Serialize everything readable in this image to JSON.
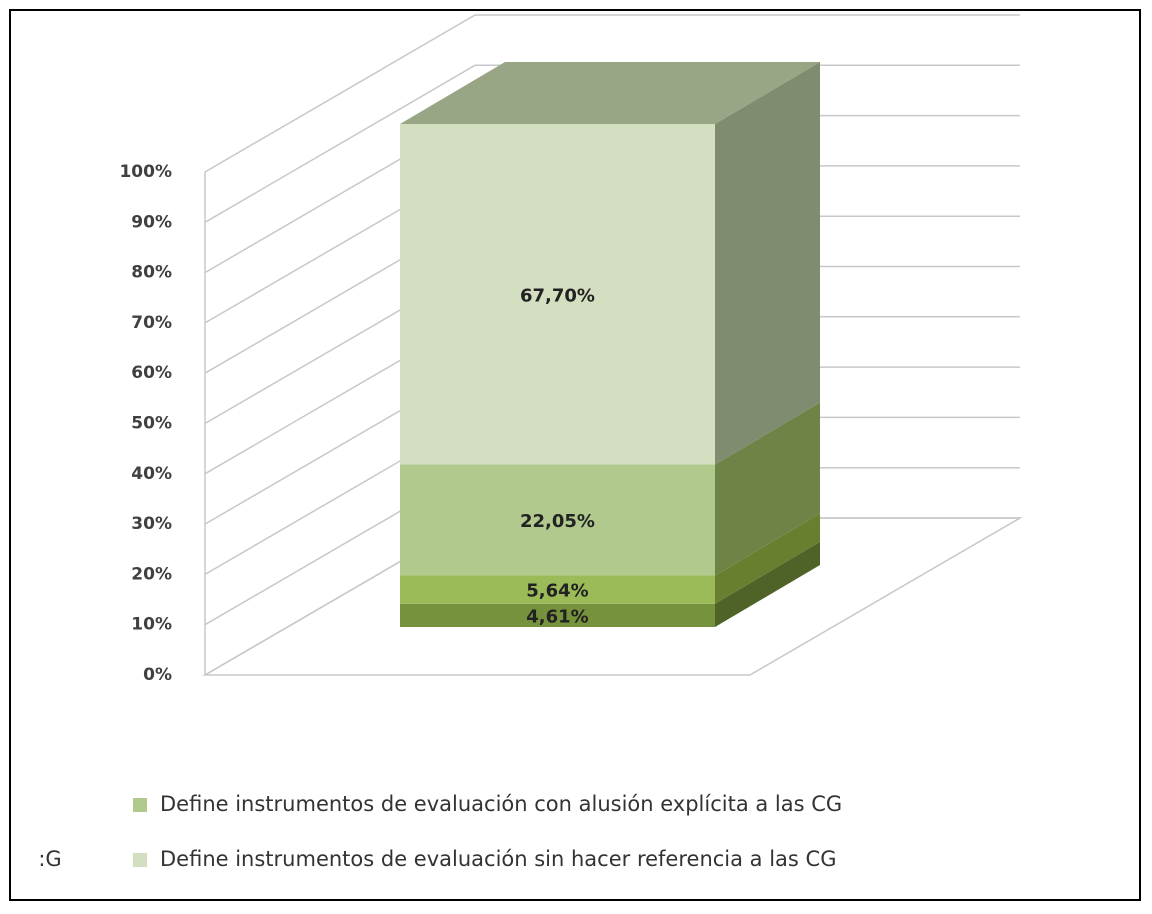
{
  "chart_data": {
    "type": "stacked-bar-3d",
    "ylim": [
      0,
      100
    ],
    "yticks": [
      {
        "value": 0,
        "label": "0%"
      },
      {
        "value": 10,
        "label": "10%"
      },
      {
        "value": 20,
        "label": "20%"
      },
      {
        "value": 30,
        "label": "30%"
      },
      {
        "value": 40,
        "label": "40%"
      },
      {
        "value": 50,
        "label": "50%"
      },
      {
        "value": 60,
        "label": "60%"
      },
      {
        "value": 70,
        "label": "70%"
      },
      {
        "value": 80,
        "label": "80%"
      },
      {
        "value": 90,
        "label": "90%"
      },
      {
        "value": 100,
        "label": "100%"
      }
    ],
    "grid": true,
    "series": [
      {
        "color": "#76923c",
        "side": "#4f6228",
        "values": [
          4.61
        ],
        "value_labels": [
          "4,61%"
        ]
      },
      {
        "color": "#9bbb59",
        "side": "#66802f",
        "values": [
          5.64
        ],
        "value_labels": [
          "5,64%"
        ]
      },
      {
        "name": "Define instrumentos de evaluación con alusión explícita a las CG",
        "color": "#b1c98d",
        "side": "#6e8447",
        "values": [
          22.05
        ],
        "value_labels": [
          "22,05%"
        ]
      },
      {
        "name": "Define instrumentos de evaluación sin hacer referencia a las CG",
        "color": "#d3dfc0",
        "side": "#7f8c70",
        "top": "#99a686",
        "values": [
          67.7
        ],
        "value_labels": [
          "67,70%"
        ]
      }
    ],
    "legend_fragment": ":G"
  }
}
